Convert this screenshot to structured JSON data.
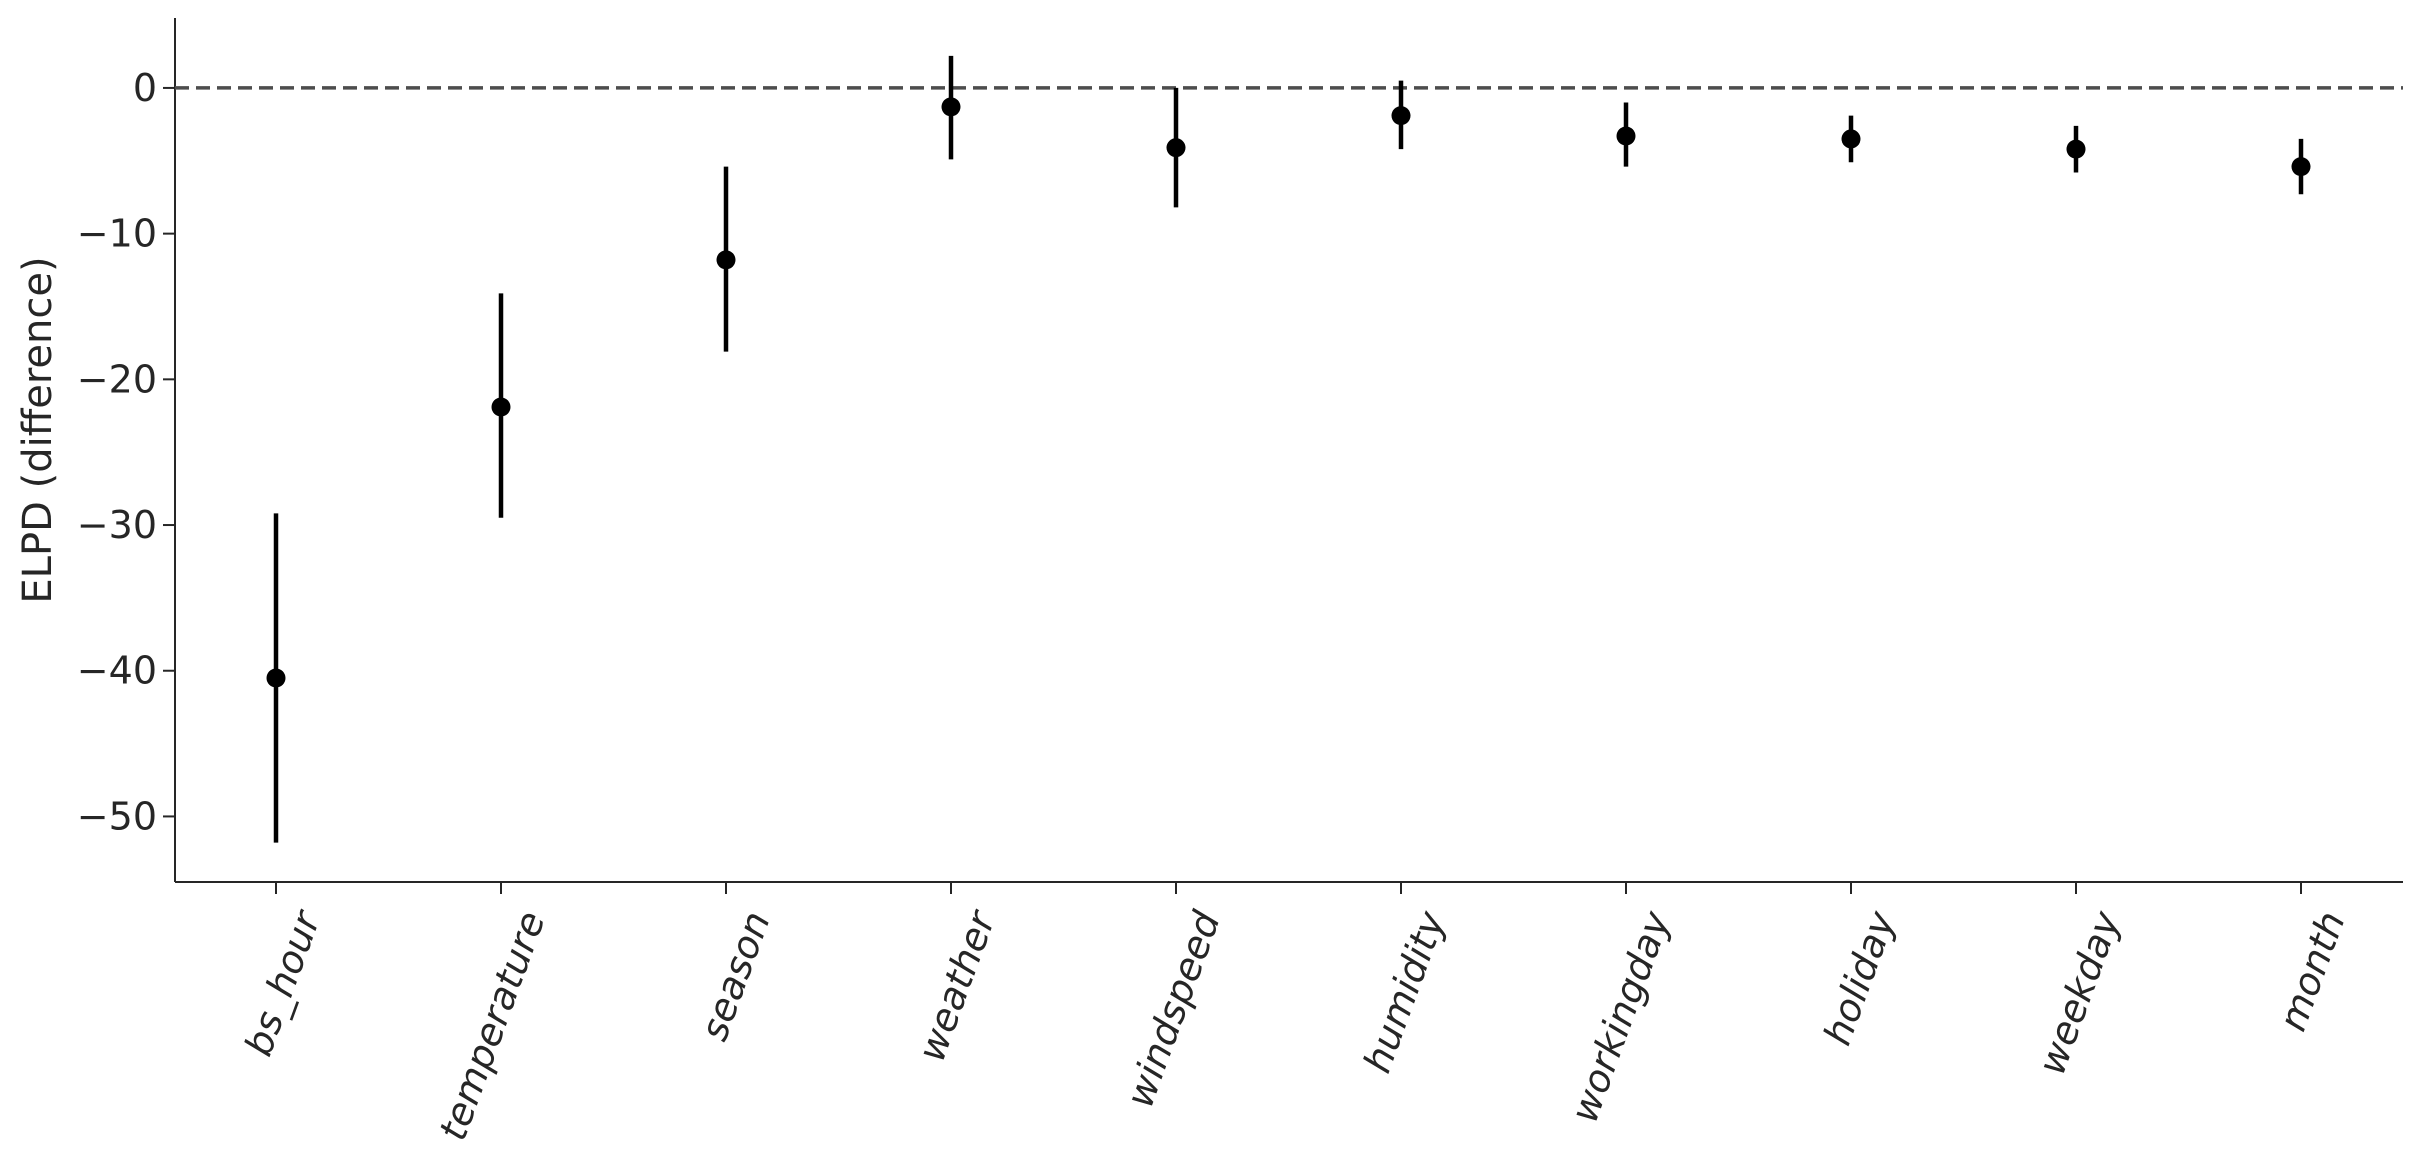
{
  "chart_data": {
    "type": "scatter",
    "title": "",
    "xlabel": "",
    "ylabel": "ELPD (difference)",
    "categories": [
      "bs_hour",
      "temperature",
      "season",
      "weather",
      "windspeed",
      "humidity",
      "workingday",
      "holiday",
      "weekday",
      "month"
    ],
    "values": [
      -40.5,
      -21.9,
      -11.8,
      -1.3,
      -4.1,
      -1.9,
      -3.3,
      -3.5,
      -4.2,
      -5.4
    ],
    "error_low": [
      -51.8,
      -29.5,
      -18.1,
      -4.9,
      -8.2,
      -4.2,
      -5.4,
      -5.1,
      -5.8,
      -7.3
    ],
    "error_high": [
      -29.2,
      -14.1,
      -5.4,
      2.2,
      0.0,
      0.5,
      -1.0,
      -1.9,
      -2.6,
      -3.5
    ],
    "reference_line": 0,
    "ylim": [
      -54.5,
      4.8
    ],
    "yticks": [
      0,
      -10,
      -20,
      -30,
      -40,
      -50
    ],
    "ytick_labels": [
      "0",
      "−10",
      "−20",
      "−30",
      "−40",
      "−50"
    ],
    "grid": false,
    "colors": {
      "points": "#000000",
      "axis": "#262626",
      "reference_line": "#4d4d4d"
    }
  }
}
